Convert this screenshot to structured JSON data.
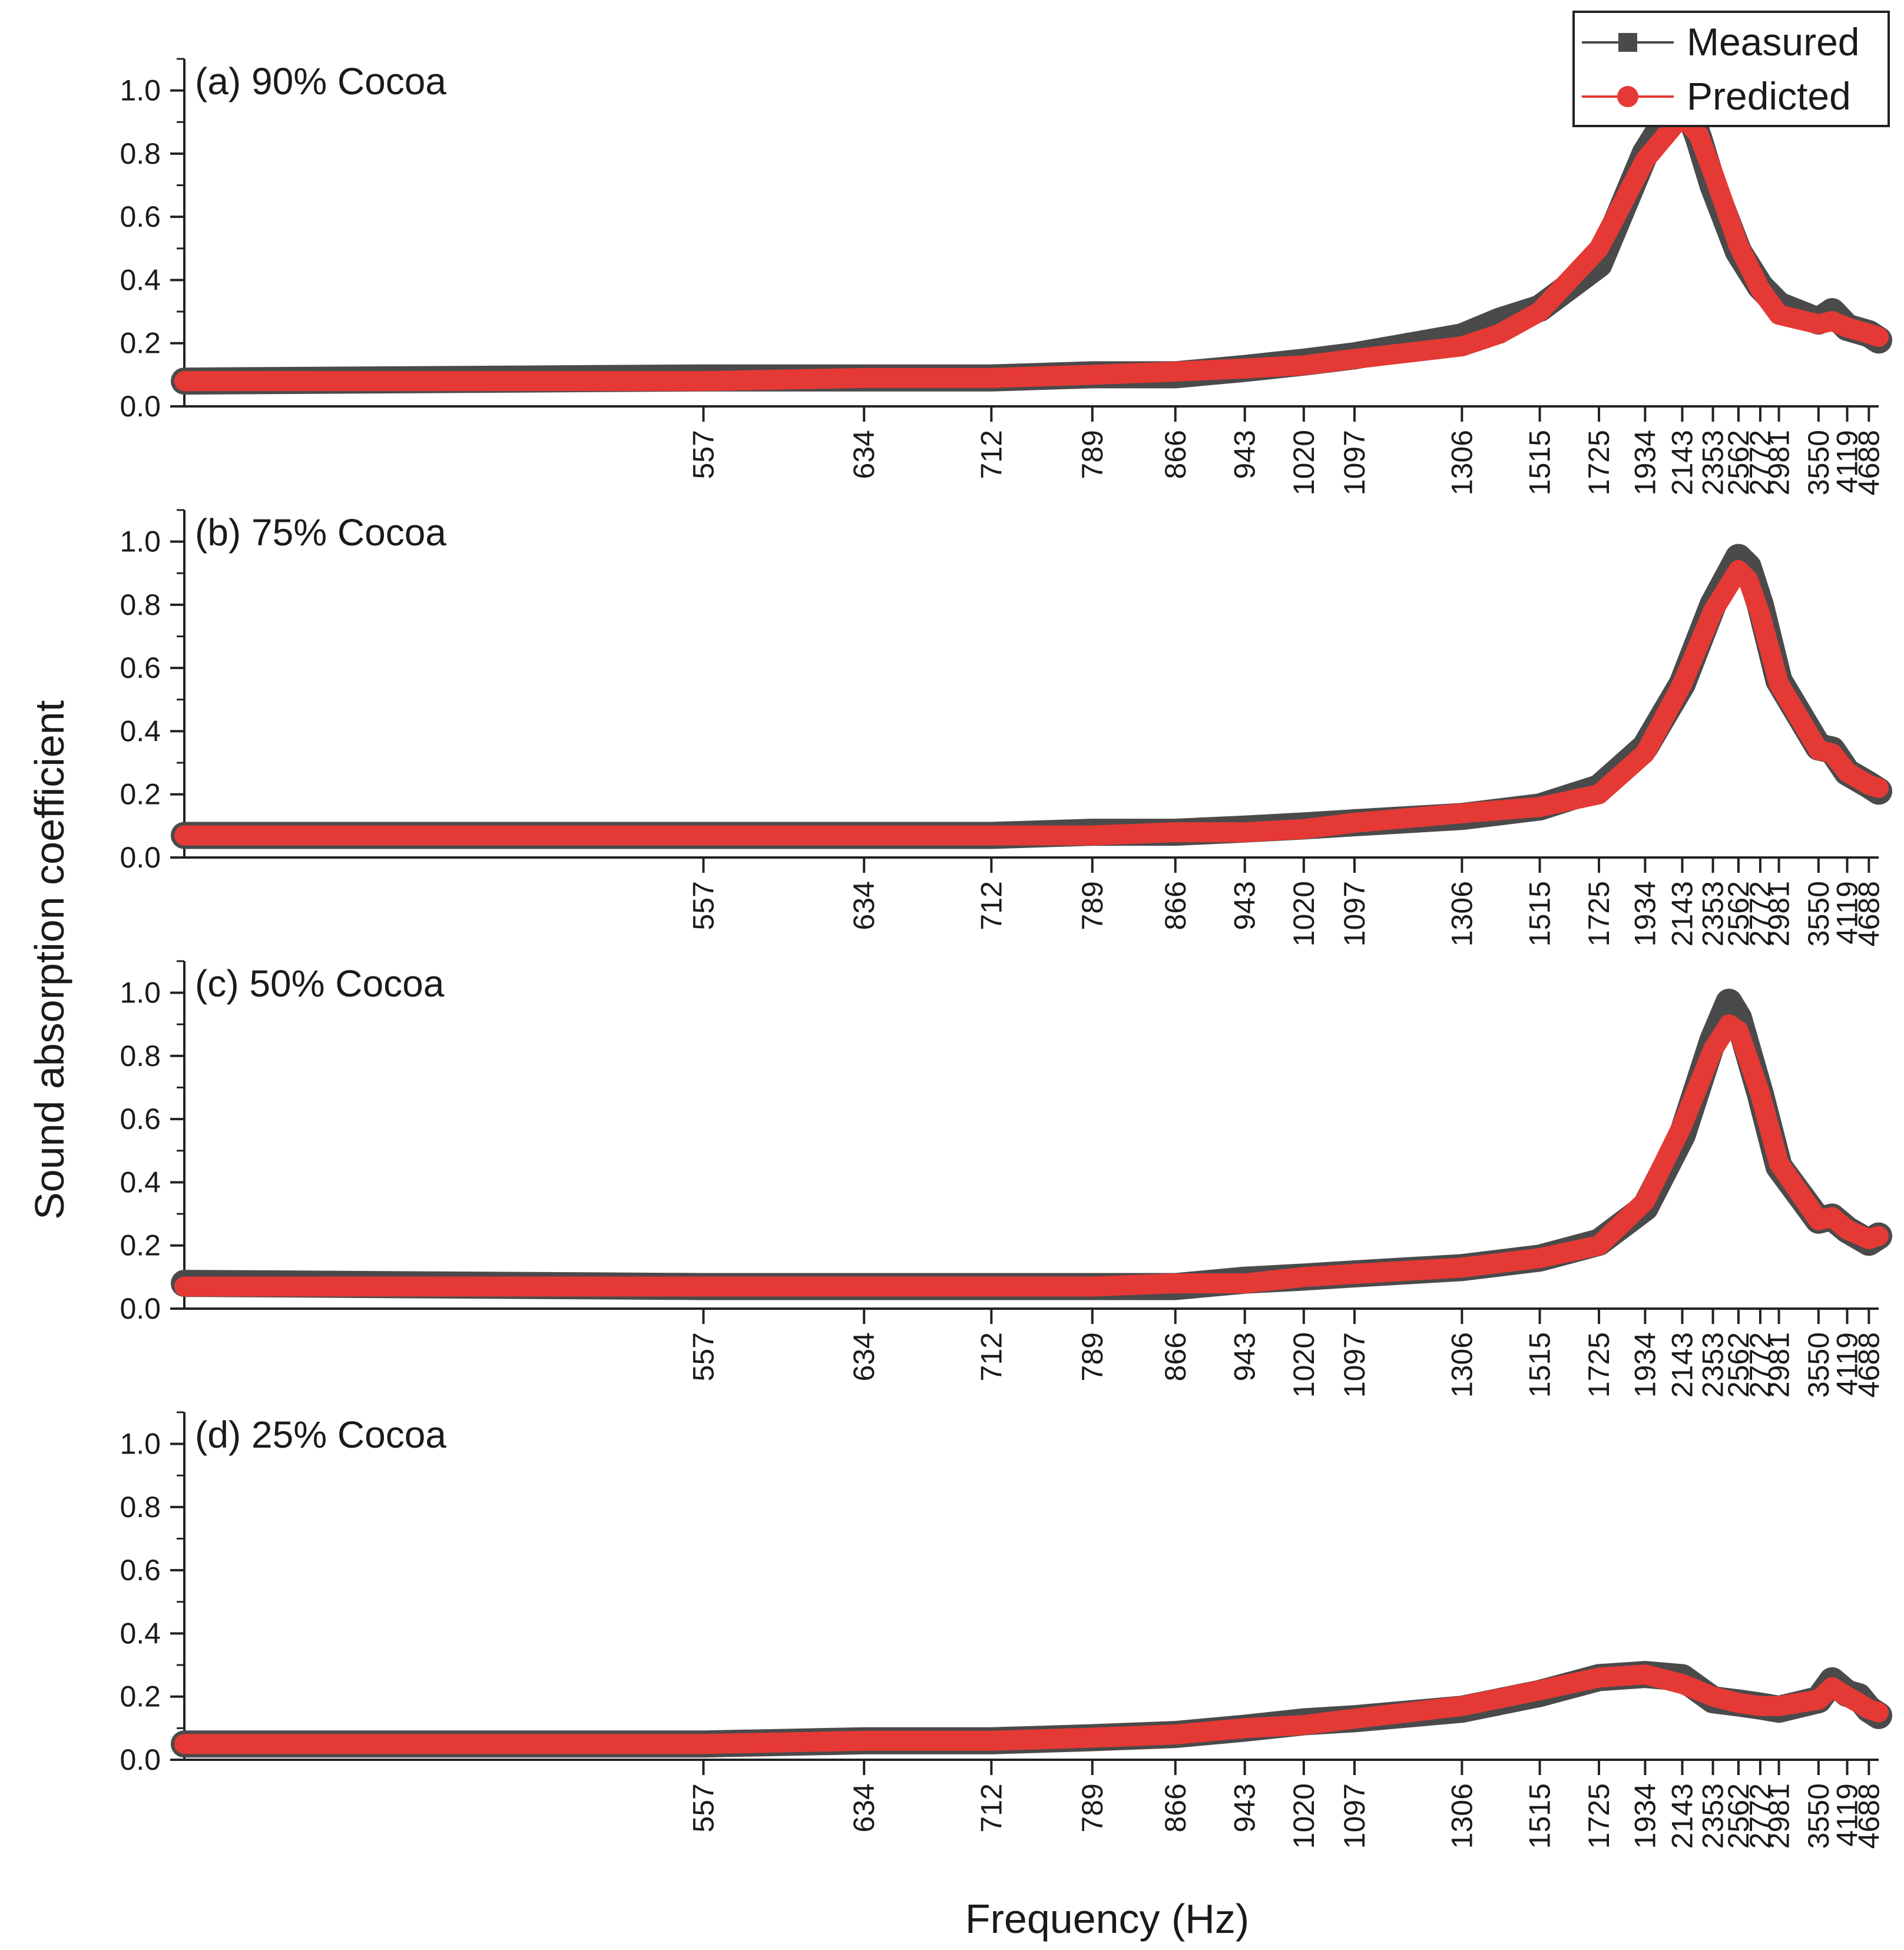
{
  "chart_data": {
    "type": "line",
    "ylabel": "Sound absorption coefficient",
    "xlabel": "Frequency (Hz)",
    "legend": {
      "placement": "top-right",
      "entries": [
        {
          "label": "Measured",
          "marker": "square",
          "color": "#4a4a4a"
        },
        {
          "label": "Predicted",
          "marker": "circle",
          "color": "#e53935"
        }
      ]
    },
    "ylim": [
      0,
      1.1
    ],
    "yticks": [
      "0.0",
      "0.2",
      "0.4",
      "0.6",
      "0.8",
      "1.0"
    ],
    "xlim": [
      400,
      5000
    ],
    "x_scale": "reciprocal",
    "xticks": [
      "557",
      "634",
      "712",
      "789",
      "866",
      "943",
      "1020",
      "1097",
      "1306",
      "1515",
      "1725",
      "1934",
      "2143",
      "2353",
      "2562",
      "2772",
      "2981",
      "3550",
      "4119",
      "4688"
    ],
    "grid": false,
    "panels": [
      {
        "title": "(a) 90% Cocoa",
        "series": [
          {
            "name": "Measured",
            "x": [
              400,
              557,
              634,
              712,
              789,
              866,
              943,
              1020,
              1097,
              1306,
              1400,
              1515,
              1725,
              1934,
              2143,
              2250,
              2353,
              2562,
              2772,
              2981,
              3550,
              3800,
              4119,
              4688,
              5000
            ],
            "y": [
              0.08,
              0.09,
              0.09,
              0.09,
              0.1,
              0.1,
              0.12,
              0.14,
              0.16,
              0.22,
              0.27,
              0.31,
              0.45,
              0.8,
              0.99,
              0.85,
              0.7,
              0.49,
              0.38,
              0.32,
              0.27,
              0.3,
              0.25,
              0.23,
              0.21
            ]
          },
          {
            "name": "Predicted",
            "x": [
              400,
              557,
              634,
              712,
              789,
              866,
              943,
              1020,
              1097,
              1306,
              1400,
              1515,
              1725,
              1934,
              2143,
              2250,
              2353,
              2562,
              2772,
              2981,
              3550,
              3800,
              4119,
              4688,
              5000
            ],
            "y": [
              0.08,
              0.08,
              0.09,
              0.09,
              0.1,
              0.11,
              0.12,
              0.13,
              0.15,
              0.19,
              0.23,
              0.3,
              0.5,
              0.78,
              0.92,
              0.86,
              0.74,
              0.51,
              0.37,
              0.29,
              0.26,
              0.27,
              0.25,
              0.23,
              0.22
            ]
          }
        ]
      },
      {
        "title": "(b) 75% Cocoa",
        "series": [
          {
            "name": "Measured",
            "x": [
              400,
              557,
              634,
              712,
              789,
              866,
              943,
              1020,
              1097,
              1306,
              1515,
              1725,
              1934,
              2143,
              2353,
              2562,
              2650,
              2772,
              2981,
              3550,
              3800,
              4119,
              4688,
              5000
            ],
            "y": [
              0.07,
              0.07,
              0.07,
              0.07,
              0.08,
              0.08,
              0.09,
              0.1,
              0.11,
              0.13,
              0.16,
              0.22,
              0.35,
              0.55,
              0.8,
              0.95,
              0.92,
              0.8,
              0.56,
              0.35,
              0.34,
              0.27,
              0.23,
              0.21
            ]
          },
          {
            "name": "Predicted",
            "x": [
              400,
              557,
              634,
              712,
              789,
              866,
              943,
              1020,
              1097,
              1306,
              1515,
              1725,
              1934,
              2143,
              2353,
              2562,
              2650,
              2772,
              2981,
              3550,
              3800,
              4119,
              4688,
              5000
            ],
            "y": [
              0.07,
              0.07,
              0.07,
              0.07,
              0.07,
              0.08,
              0.08,
              0.09,
              0.11,
              0.14,
              0.16,
              0.2,
              0.33,
              0.55,
              0.78,
              0.91,
              0.88,
              0.77,
              0.55,
              0.34,
              0.33,
              0.27,
              0.23,
              0.22
            ]
          }
        ]
      },
      {
        "title": "(c) 50% Cocoa",
        "series": [
          {
            "name": "Measured",
            "x": [
              400,
              557,
              634,
              712,
              789,
              866,
              943,
              1020,
              1097,
              1306,
              1515,
              1725,
              1934,
              2143,
              2353,
              2480,
              2562,
              2772,
              2981,
              3550,
              3800,
              4119,
              4688,
              5000
            ],
            "y": [
              0.08,
              0.07,
              0.07,
              0.07,
              0.07,
              0.07,
              0.09,
              0.1,
              0.11,
              0.13,
              0.16,
              0.21,
              0.32,
              0.55,
              0.85,
              0.97,
              0.92,
              0.68,
              0.45,
              0.28,
              0.29,
              0.25,
              0.21,
              0.23
            ]
          },
          {
            "name": "Predicted",
            "x": [
              400,
              557,
              634,
              712,
              789,
              866,
              943,
              1020,
              1097,
              1306,
              1515,
              1725,
              1934,
              2143,
              2353,
              2480,
              2562,
              2772,
              2981,
              3550,
              3800,
              4119,
              4688,
              5000
            ],
            "y": [
              0.07,
              0.07,
              0.07,
              0.07,
              0.07,
              0.08,
              0.08,
              0.1,
              0.11,
              0.13,
              0.16,
              0.2,
              0.34,
              0.58,
              0.82,
              0.9,
              0.88,
              0.68,
              0.46,
              0.28,
              0.29,
              0.25,
              0.22,
              0.23
            ]
          }
        ]
      },
      {
        "title": "(d) 25% Cocoa",
        "series": [
          {
            "name": "Measured",
            "x": [
              400,
              557,
              634,
              712,
              789,
              866,
              943,
              1020,
              1097,
              1306,
              1515,
              1725,
              1934,
              2143,
              2353,
              2562,
              2772,
              2981,
              3550,
              3800,
              4119,
              4400,
              4688,
              5000
            ],
            "y": [
              0.05,
              0.05,
              0.06,
              0.06,
              0.07,
              0.08,
              0.1,
              0.12,
              0.13,
              0.16,
              0.21,
              0.26,
              0.27,
              0.26,
              0.19,
              0.18,
              0.17,
              0.16,
              0.19,
              0.25,
              0.21,
              0.2,
              0.16,
              0.14
            ]
          },
          {
            "name": "Predicted",
            "x": [
              400,
              557,
              634,
              712,
              789,
              866,
              943,
              1020,
              1097,
              1306,
              1515,
              1725,
              1934,
              2143,
              2353,
              2562,
              2772,
              2981,
              3550,
              3800,
              4119,
              4400,
              4688,
              5000
            ],
            "y": [
              0.05,
              0.05,
              0.06,
              0.06,
              0.07,
              0.08,
              0.1,
              0.11,
              0.13,
              0.17,
              0.22,
              0.26,
              0.27,
              0.24,
              0.2,
              0.18,
              0.17,
              0.17,
              0.19,
              0.23,
              0.2,
              0.18,
              0.16,
              0.15
            ]
          }
        ]
      }
    ]
  }
}
